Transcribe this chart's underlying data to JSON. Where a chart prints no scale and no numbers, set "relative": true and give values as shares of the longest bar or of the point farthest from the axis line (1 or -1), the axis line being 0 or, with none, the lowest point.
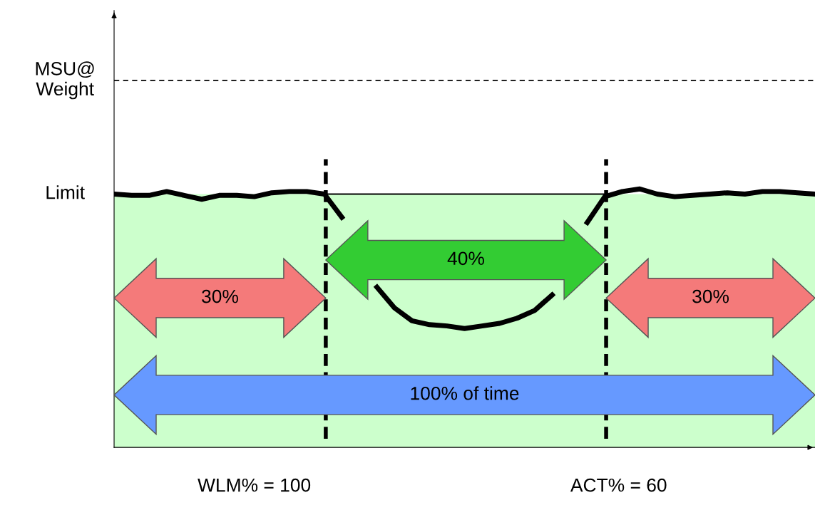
{
  "chart_data": {
    "type": "line",
    "relative": true,
    "marker": "none",
    "line_style": "solid",
    "categories": [
      null,
      null,
      null,
      null,
      null,
      null,
      null,
      null,
      null,
      null,
      null,
      null,
      null,
      null,
      null,
      null,
      null,
      null,
      null,
      null,
      null,
      null,
      null,
      null,
      null,
      null,
      null,
      null,
      null,
      null,
      null,
      null,
      null,
      null,
      null,
      null,
      null,
      null,
      null,
      null,
      null
    ],
    "series": [
      {
        "color": "#000000",
        "values": [
          0.98,
          0.975,
          0.975,
          0.99,
          0.975,
          0.96,
          0.975,
          0.975,
          0.97,
          0.985,
          0.99,
          0.99,
          0.98,
          0.89,
          null,
          0.62,
          0.54,
          0.49,
          0.475,
          0.47,
          0.46,
          0.47,
          0.48,
          0.5,
          0.53,
          0.59,
          null,
          0.87,
          0.97,
          0.99,
          1.0,
          0.98,
          0.97,
          0.975,
          0.98,
          0.985,
          0.98,
          0.99,
          0.99,
          0.985,
          0.98
        ]
      },
      {
        "color": "#000000",
        "values": [
          null,
          null,
          null,
          null,
          null,
          null,
          null,
          null,
          null,
          null,
          null,
          null,
          0.98,
          0.98,
          0.98,
          0.98,
          0.98,
          0.98,
          0.98,
          0.98,
          0.98,
          0.98,
          0.98,
          0.98,
          0.98,
          0.98,
          0.98,
          0.98,
          0.98,
          null,
          null,
          null,
          null,
          null,
          null,
          null,
          null,
          null,
          null,
          null,
          null
        ]
      }
    ],
    "ref_lines": [
      {
        "axis": "y",
        "value": 1.42,
        "label": "MSU@\nWeight",
        "line_style": "dashed",
        "color": "#000000"
      }
    ],
    "bands": [
      {
        "axis": "y",
        "from": 0,
        "to": 0.98,
        "label": "Limit",
        "color": "#ccffcc"
      }
    ],
    "annotations": [
      "WLM% = 100",
      "ACT% = 60",
      "30%",
      "40%",
      "30%",
      "100% of time"
    ]
  }
}
